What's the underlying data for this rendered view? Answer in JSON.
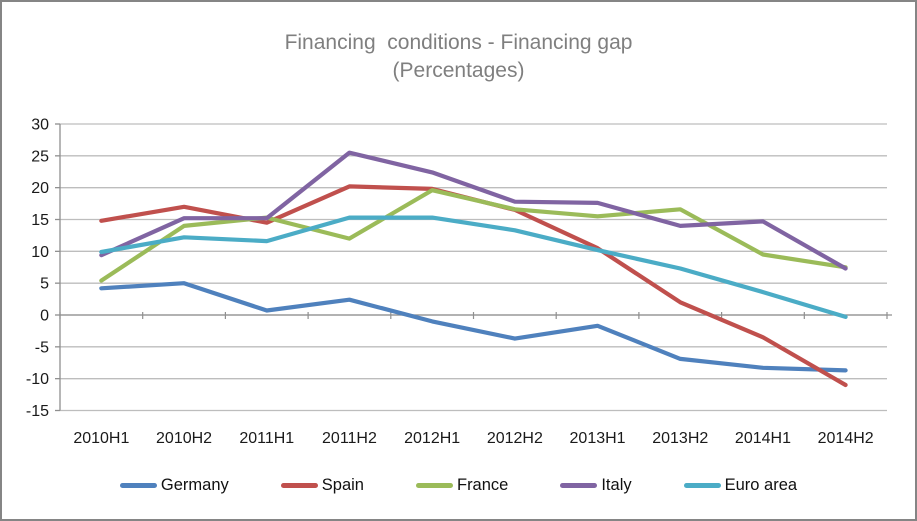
{
  "chart_data": {
    "type": "line",
    "title": "Financing  conditions - Financing gap",
    "subtitle": "(Percentages)",
    "xlabel": "",
    "ylabel": "",
    "categories": [
      "2010H1",
      "2010H2",
      "2011H1",
      "2011H2",
      "2012H1",
      "2012H2",
      "2013H1",
      "2013H2",
      "2014H1",
      "2014H2"
    ],
    "series": [
      {
        "name": "Germany",
        "color": "#4F81BD",
        "values": [
          4.2,
          5.0,
          0.7,
          2.4,
          -1.0,
          -3.7,
          -1.7,
          -6.9,
          -8.3,
          -8.7
        ]
      },
      {
        "name": "Spain",
        "color": "#C0504D",
        "values": [
          14.8,
          17.0,
          14.5,
          20.2,
          19.8,
          16.5,
          10.5,
          2.0,
          -3.5,
          -11.0
        ]
      },
      {
        "name": "France",
        "color": "#9BBB59",
        "values": [
          5.4,
          14.0,
          15.3,
          12.0,
          19.6,
          16.6,
          15.5,
          16.6,
          9.5,
          7.5
        ]
      },
      {
        "name": "Italy",
        "color": "#8064A2",
        "values": [
          9.4,
          15.2,
          15.2,
          25.5,
          22.4,
          17.8,
          17.6,
          14.0,
          14.7,
          7.3
        ]
      },
      {
        "name": "Euro area",
        "color": "#4BACC6",
        "values": [
          9.9,
          12.2,
          11.6,
          15.3,
          15.3,
          13.3,
          10.2,
          7.3,
          3.6,
          -0.3
        ]
      }
    ],
    "ylim": [
      -15,
      30
    ],
    "ytick_step": 5,
    "grid": true,
    "legend_position": "bottom",
    "style_colors": {
      "title_text": "#7f7f7f",
      "gridline": "#bdbdbd",
      "axis": "#8f8f8f",
      "tick_text": "#1a1a1a",
      "frame_border": "#858585"
    }
  }
}
